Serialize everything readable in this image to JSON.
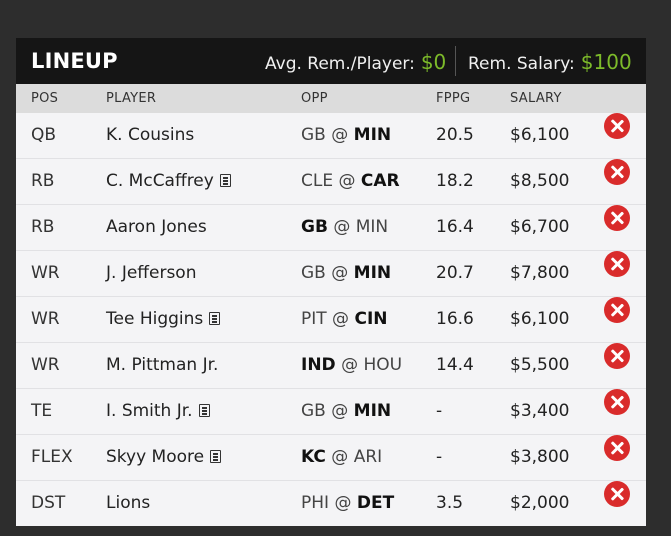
{
  "header": {
    "title": "LINEUP",
    "avg_label": "Avg. Rem./Player:",
    "avg_value": "$0",
    "rem_label": "Rem. Salary:",
    "rem_value": "$100",
    "value_color": "#7dbb2a"
  },
  "columns": [
    "POS",
    "PLAYER",
    "OPP",
    "FPPG",
    "SALARY"
  ],
  "rows": [
    {
      "pos": "QB",
      "player": "K. Cousins",
      "news": false,
      "away": "GB",
      "home": "MIN",
      "bold": "home",
      "fppg": "20.5",
      "salary": "$6,100"
    },
    {
      "pos": "RB",
      "player": "C. McCaffrey",
      "news": true,
      "away": "CLE",
      "home": "CAR",
      "bold": "home",
      "fppg": "18.2",
      "salary": "$8,500"
    },
    {
      "pos": "RB",
      "player": "Aaron Jones",
      "news": false,
      "away": "GB",
      "home": "MIN",
      "bold": "away",
      "fppg": "16.4",
      "salary": "$6,700"
    },
    {
      "pos": "WR",
      "player": "J. Jefferson",
      "news": false,
      "away": "GB",
      "home": "MIN",
      "bold": "home",
      "fppg": "20.7",
      "salary": "$7,800"
    },
    {
      "pos": "WR",
      "player": "Tee Higgins",
      "news": true,
      "away": "PIT",
      "home": "CIN",
      "bold": "home",
      "fppg": "16.6",
      "salary": "$6,100"
    },
    {
      "pos": "WR",
      "player": "M. Pittman Jr.",
      "news": false,
      "away": "IND",
      "home": "HOU",
      "bold": "away",
      "fppg": "14.4",
      "salary": "$5,500"
    },
    {
      "pos": "TE",
      "player": "I. Smith Jr.",
      "news": true,
      "away": "GB",
      "home": "MIN",
      "bold": "home",
      "fppg": "-",
      "salary": "$3,400"
    },
    {
      "pos": "FLEX",
      "player": "Skyy Moore",
      "news": true,
      "away": "KC",
      "home": "ARI",
      "bold": "away",
      "fppg": "-",
      "salary": "$3,800"
    },
    {
      "pos": "DST",
      "player": "Lions",
      "news": false,
      "away": "PHI",
      "home": "DET",
      "bold": "home",
      "fppg": "3.5",
      "salary": "$2,000"
    }
  ],
  "colors": {
    "remove": "#d92b2b",
    "header_bg": "#151515",
    "colhead_bg": "#dcdcdc"
  },
  "icons": {
    "remove": "remove-circle-x-icon",
    "news": "news-document-icon"
  }
}
